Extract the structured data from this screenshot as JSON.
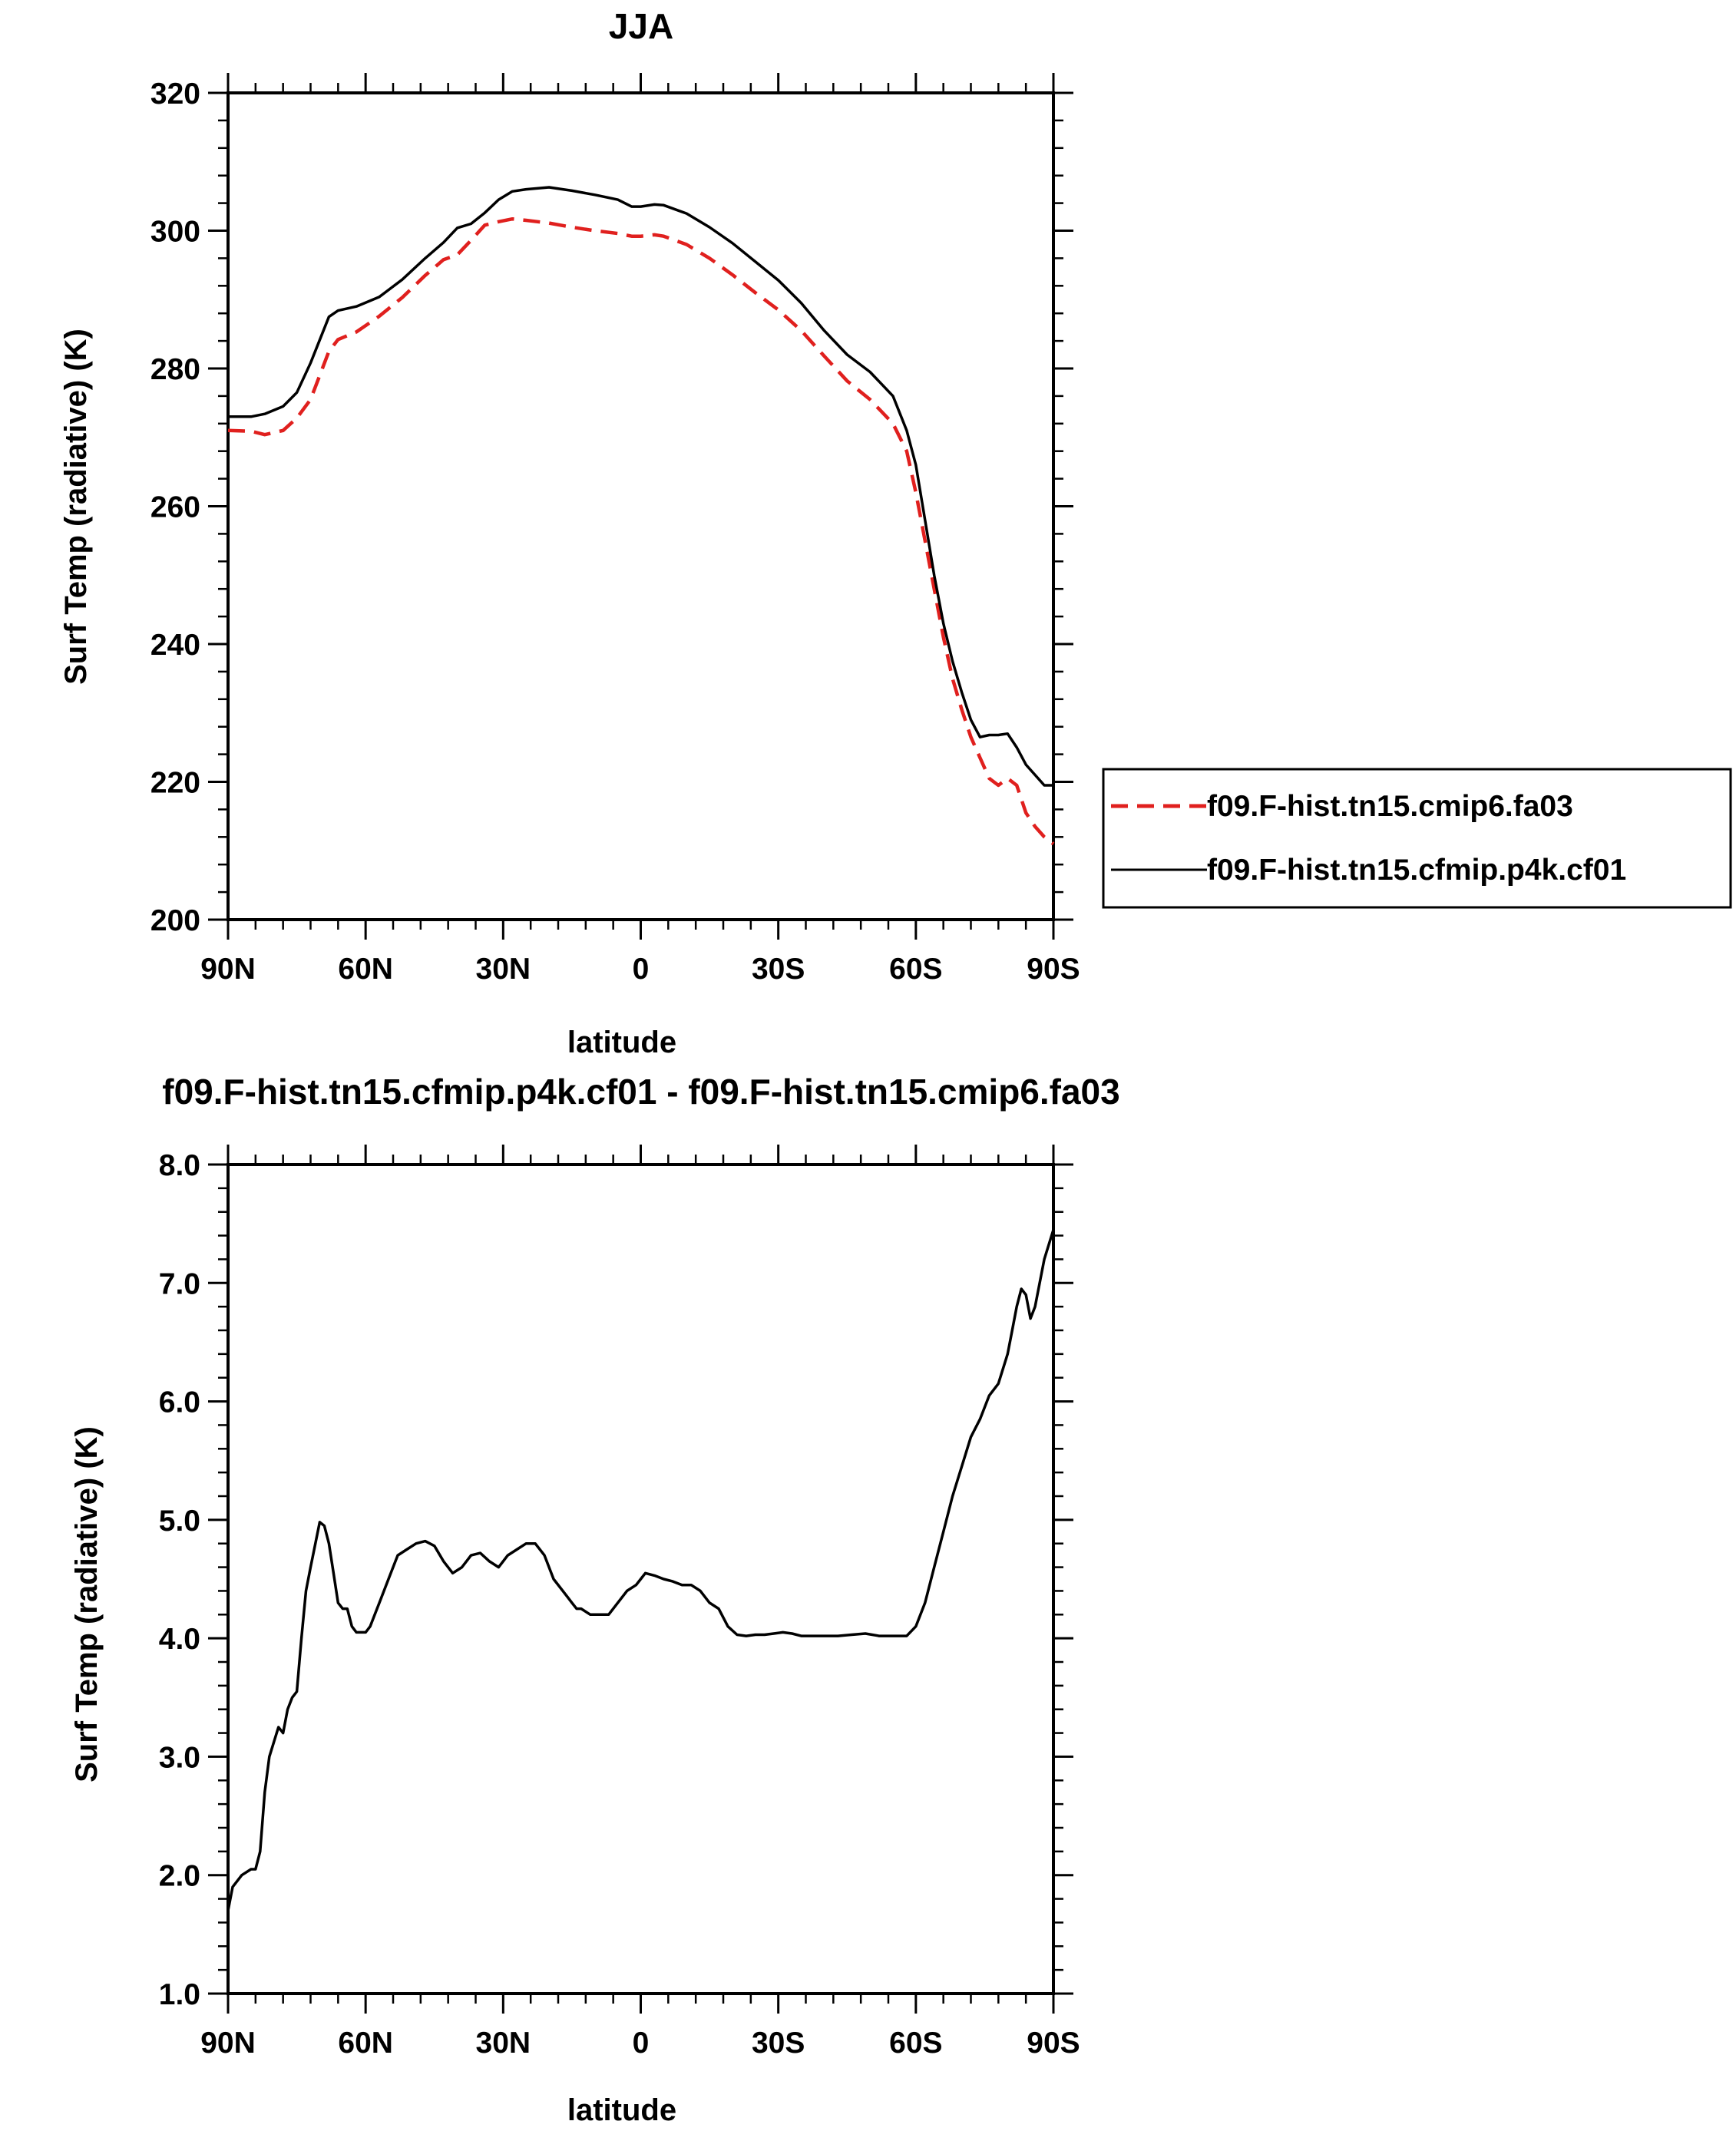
{
  "chart_data": [
    {
      "type": "line",
      "title": "JJA",
      "xlabel": "latitude",
      "ylabel": "Surf Temp (radiative) (K)",
      "xlim": [
        90,
        -90
      ],
      "ylim": [
        200,
        320
      ],
      "yticks": [
        "200",
        "220",
        "240",
        "260",
        "280",
        "300",
        "320"
      ],
      "xticks": [
        {
          "value": 90,
          "label": "90N"
        },
        {
          "value": 60,
          "label": "60N"
        },
        {
          "value": 30,
          "label": "30N"
        },
        {
          "value": 0,
          "label": "0"
        },
        {
          "value": -30,
          "label": "30S"
        },
        {
          "value": -60,
          "label": "60S"
        },
        {
          "value": -90,
          "label": "90S"
        }
      ],
      "legend": "right",
      "series": [
        {
          "name": "f09.F-hist.tn15.cmip6.fa03",
          "color": "#e0201e",
          "dash": "dashed",
          "x": [
            90,
            85,
            82,
            78,
            75,
            72,
            68,
            66,
            62,
            57,
            52,
            47,
            43,
            40,
            37,
            34,
            31,
            28,
            25,
            20,
            15,
            10,
            5,
            2,
            0,
            -3,
            -5,
            -10,
            -15,
            -20,
            -25,
            -30,
            -35,
            -40,
            -45,
            -50,
            -55,
            -58,
            -60,
            -62,
            -64,
            -66,
            -68,
            -70,
            -72,
            -74,
            -76,
            -78,
            -80,
            -82,
            -84,
            -86,
            -88,
            -90
          ],
          "y": [
            271.0,
            270.9,
            270.4,
            271.0,
            272.8,
            275.5,
            282.5,
            284.2,
            285.3,
            287.6,
            290.3,
            293.5,
            295.8,
            296.5,
            298.6,
            300.8,
            301.3,
            301.7,
            301.5,
            301.1,
            300.5,
            300.0,
            299.6,
            299.2,
            299.2,
            299.4,
            299.2,
            298.0,
            296.0,
            293.6,
            291.0,
            288.5,
            285.5,
            281.8,
            278.2,
            275.5,
            272.0,
            268.0,
            262.0,
            255.0,
            248.0,
            241.0,
            235.0,
            230.5,
            226.5,
            223.5,
            220.5,
            219.5,
            220.5,
            219.5,
            215.5,
            213.5,
            212.0,
            211.0
          ]
        },
        {
          "name": "f09.F-hist.tn15.cfmip.p4k.cf01",
          "color": "#000000",
          "dash": "solid",
          "x": [
            90,
            85,
            82,
            78,
            75,
            72,
            68,
            66,
            62,
            57,
            52,
            47,
            43,
            40,
            37,
            34,
            31,
            28,
            25,
            20,
            15,
            10,
            5,
            2,
            0,
            -3,
            -5,
            -10,
            -15,
            -20,
            -25,
            -30,
            -35,
            -40,
            -45,
            -50,
            -55,
            -58,
            -60,
            -62,
            -64,
            -66,
            -68,
            -70,
            -72,
            -74,
            -76,
            -78,
            -80,
            -82,
            -84,
            -86,
            -88,
            -90
          ],
          "y": [
            273.0,
            273.0,
            273.4,
            274.5,
            276.5,
            280.8,
            287.5,
            288.4,
            289.0,
            290.4,
            292.9,
            296.0,
            298.3,
            300.4,
            301.0,
            302.6,
            304.5,
            305.7,
            306.0,
            306.3,
            305.8,
            305.2,
            304.5,
            303.5,
            303.5,
            303.8,
            303.7,
            302.5,
            300.5,
            298.2,
            295.5,
            292.8,
            289.5,
            285.5,
            282.0,
            279.5,
            276.0,
            271.0,
            266.0,
            258.0,
            250.0,
            243.0,
            237.5,
            233.0,
            229.0,
            226.5,
            226.8,
            226.8,
            227.0,
            225.0,
            222.5,
            221.0,
            219.5,
            219.5
          ]
        }
      ]
    },
    {
      "type": "line",
      "title": "f09.F-hist.tn15.cfmip.p4k.cf01 - f09.F-hist.tn15.cmip6.fa03",
      "xlabel": "latitude",
      "ylabel": "Surf Temp (radiative) (K)",
      "xlim": [
        90,
        -90
      ],
      "ylim": [
        1.0,
        8.0
      ],
      "yticks": [
        "1.0",
        "2.0",
        "3.0",
        "4.0",
        "5.0",
        "6.0",
        "7.0",
        "8.0"
      ],
      "xticks": [
        {
          "value": 90,
          "label": "90N"
        },
        {
          "value": 60,
          "label": "60N"
        },
        {
          "value": 30,
          "label": "30N"
        },
        {
          "value": 0,
          "label": "0"
        },
        {
          "value": -30,
          "label": "30S"
        },
        {
          "value": -60,
          "label": "60S"
        },
        {
          "value": -90,
          "label": "90S"
        }
      ],
      "series": [
        {
          "color": "#000000",
          "x": [
            90,
            89,
            87,
            85,
            84,
            83,
            82,
            81,
            79,
            78,
            77,
            76,
            75,
            74,
            73,
            72,
            70,
            69,
            68,
            67,
            66,
            65,
            64,
            63,
            62,
            61,
            60,
            59,
            58,
            57,
            55,
            53,
            51,
            49,
            47,
            45,
            43,
            41,
            39,
            37,
            35,
            33,
            31,
            29,
            27,
            25,
            23,
            21,
            19,
            17,
            16,
            15,
            14,
            13,
            11,
            9,
            7,
            5,
            3,
            1,
            0,
            -1,
            -3,
            -5,
            -7,
            -9,
            -11,
            -13,
            -15,
            -17,
            -19,
            -21,
            -23,
            -25,
            -27,
            -29,
            -31,
            -33,
            -35,
            -37,
            -40,
            -43,
            -46,
            -49,
            -52,
            -55,
            -58,
            -60,
            -62,
            -64,
            -66,
            -68,
            -70,
            -72,
            -74,
            -76,
            -78,
            -80,
            -81,
            -82,
            -83,
            -84,
            -85,
            -86,
            -88,
            -90
          ],
          "y": [
            1.7,
            1.9,
            2.0,
            2.05,
            2.05,
            2.2,
            2.7,
            3.0,
            3.25,
            3.2,
            3.4,
            3.5,
            3.55,
            4.0,
            4.4,
            4.6,
            4.98,
            4.95,
            4.8,
            4.55,
            4.3,
            4.25,
            4.25,
            4.1,
            4.05,
            4.05,
            4.05,
            4.1,
            4.2,
            4.3,
            4.5,
            4.7,
            4.75,
            4.8,
            4.82,
            4.78,
            4.65,
            4.55,
            4.6,
            4.7,
            4.72,
            4.65,
            4.6,
            4.7,
            4.75,
            4.8,
            4.8,
            4.7,
            4.5,
            4.4,
            4.35,
            4.3,
            4.25,
            4.25,
            4.2,
            4.2,
            4.2,
            4.3,
            4.4,
            4.45,
            4.5,
            4.55,
            4.53,
            4.5,
            4.48,
            4.45,
            4.45,
            4.4,
            4.3,
            4.25,
            4.1,
            4.03,
            4.02,
            4.03,
            4.03,
            4.04,
            4.05,
            4.04,
            4.02,
            4.02,
            4.02,
            4.02,
            4.03,
            4.04,
            4.02,
            4.02,
            4.02,
            4.1,
            4.3,
            4.6,
            4.9,
            5.2,
            5.45,
            5.7,
            5.85,
            6.05,
            6.15,
            6.4,
            6.6,
            6.8,
            6.95,
            6.9,
            6.7,
            6.8,
            7.2,
            7.45
          ]
        }
      ]
    }
  ]
}
